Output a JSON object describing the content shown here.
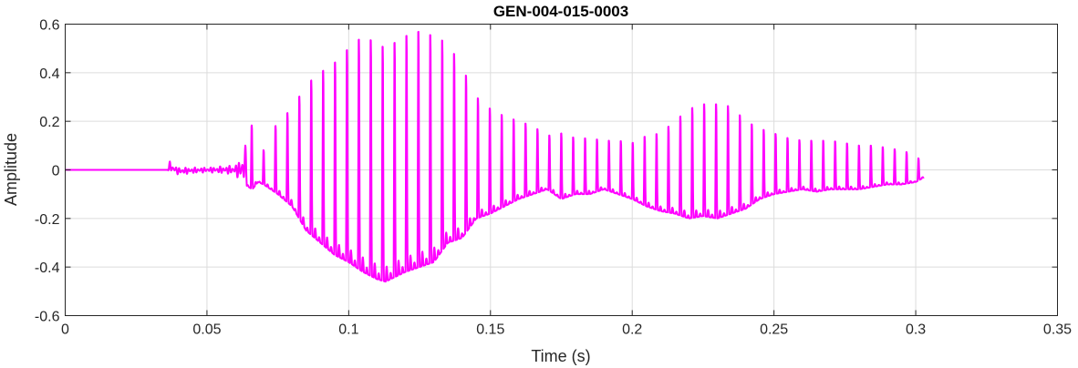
{
  "chart_data": {
    "type": "line",
    "title": "GEN-004-015-0003",
    "xlabel": "Time (s)",
    "ylabel": "Amplitude",
    "xlim": [
      0,
      0.35
    ],
    "ylim": [
      -0.6,
      0.6
    ],
    "xticks": [
      0,
      0.05,
      0.1,
      0.15,
      0.2,
      0.25,
      0.3,
      0.35
    ],
    "xtick_labels": [
      "0",
      "0.05",
      "0.1",
      "0.15",
      "0.2",
      "0.25",
      "0.3",
      "0.35"
    ],
    "yticks": [
      -0.6,
      -0.4,
      -0.2,
      0,
      0.2,
      0.4,
      0.6
    ],
    "ytick_labels": [
      "-0.6",
      "-0.4",
      "-0.2",
      "0",
      "0.2",
      "0.4",
      "0.6"
    ],
    "grid": true,
    "series": [
      {
        "color": "#ff00ff",
        "x": [
          0,
          0.036,
          0.037,
          0.038,
          0.04,
          0.05,
          0.06,
          0.062,
          0.066,
          0.068,
          0.07,
          0.075,
          0.08,
          0.085,
          0.09,
          0.095,
          0.1,
          0.105,
          0.11,
          0.113,
          0.12,
          0.125,
          0.13,
          0.135,
          0.14,
          0.145,
          0.15,
          0.155,
          0.16,
          0.165,
          0.17,
          0.175,
          0.18,
          0.185,
          0.19,
          0.195,
          0.2,
          0.205,
          0.21,
          0.215,
          0.22,
          0.225,
          0.23,
          0.235,
          0.24,
          0.245,
          0.25,
          0.255,
          0.26,
          0.265,
          0.27,
          0.275,
          0.28,
          0.285,
          0.29,
          0.295,
          0.3,
          0.303
        ],
        "y_upper": [
          0,
          0,
          0.04,
          0.02,
          0.01,
          0.01,
          0.02,
          0.05,
          0.19,
          0.1,
          0.08,
          0.2,
          0.25,
          0.35,
          0.4,
          0.44,
          0.5,
          0.55,
          0.52,
          0.5,
          0.55,
          0.57,
          0.55,
          0.52,
          0.42,
          0.3,
          0.25,
          0.22,
          0.2,
          0.18,
          0.14,
          0.15,
          0.13,
          0.13,
          0.12,
          0.12,
          0.11,
          0.14,
          0.15,
          0.2,
          0.25,
          0.27,
          0.27,
          0.26,
          0.2,
          0.17,
          0.15,
          0.13,
          0.12,
          0.12,
          0.12,
          0.11,
          0.1,
          0.1,
          0.09,
          0.08,
          0.06,
          0.02
        ],
        "y_lower": [
          0,
          0,
          -0.01,
          -0.01,
          -0.02,
          -0.01,
          -0.02,
          -0.05,
          -0.08,
          -0.05,
          -0.06,
          -0.1,
          -0.15,
          -0.25,
          -0.3,
          -0.35,
          -0.38,
          -0.42,
          -0.45,
          -0.46,
          -0.42,
          -0.4,
          -0.38,
          -0.3,
          -0.28,
          -0.2,
          -0.18,
          -0.15,
          -0.12,
          -0.1,
          -0.08,
          -0.12,
          -0.1,
          -0.1,
          -0.08,
          -0.1,
          -0.12,
          -0.15,
          -0.17,
          -0.18,
          -0.2,
          -0.19,
          -0.2,
          -0.18,
          -0.16,
          -0.12,
          -0.1,
          -0.09,
          -0.08,
          -0.09,
          -0.08,
          -0.08,
          -0.08,
          -0.07,
          -0.06,
          -0.06,
          -0.05,
          -0.03
        ]
      }
    ]
  }
}
